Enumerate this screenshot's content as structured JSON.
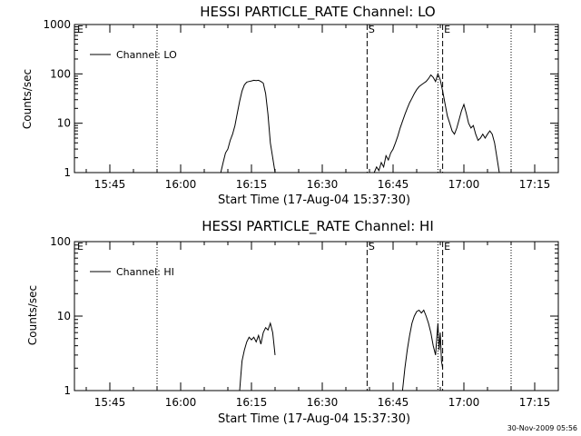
{
  "footer": {
    "timestamp": "30-Nov-2009 05:56"
  },
  "chart_data": [
    {
      "type": "line",
      "title": "HESSI PARTICLE_RATE Channel: LO",
      "xlabel": "Start Time (17-Aug-04 15:37:30)",
      "ylabel": "Counts/sec",
      "y_scale": "log",
      "xlim": [
        "15:37:30",
        "17:20:00"
      ],
      "ylim": [
        1,
        1000
      ],
      "x_ticks": [
        "15:45",
        "16:00",
        "16:15",
        "16:30",
        "16:45",
        "17:00",
        "17:15"
      ],
      "y_ticks": [
        {
          "value": 1,
          "label": "1"
        },
        {
          "value": 10,
          "label": "10"
        },
        {
          "value": 100,
          "label": "100"
        },
        {
          "value": 1000,
          "label": "1000"
        }
      ],
      "legend": {
        "position": "top-left",
        "entries": [
          "Channel: LO"
        ]
      },
      "markers": [
        {
          "time": "15:55:00",
          "style": "dotted",
          "label": ""
        },
        {
          "time": "16:39:30",
          "style": "dashed",
          "label": "S"
        },
        {
          "time": "16:54:30",
          "style": "dotted",
          "label": ""
        },
        {
          "time": "16:55:30",
          "style": "dashed",
          "label": "E"
        },
        {
          "time": "17:10:00",
          "style": "dotted",
          "label": ""
        }
      ],
      "edge_label": "E",
      "series": [
        {
          "name": "Channel: LO",
          "segments": [
            [
              [
                "16:08:30",
                1
              ],
              [
                "16:09:00",
                1.6
              ],
              [
                "16:09:30",
                2.5
              ],
              [
                "16:10:00",
                3
              ],
              [
                "16:10:30",
                4.5
              ],
              [
                "16:11:00",
                6
              ],
              [
                "16:11:30",
                9
              ],
              [
                "16:12:00",
                16
              ],
              [
                "16:12:30",
                28
              ],
              [
                "16:13:00",
                45
              ],
              [
                "16:13:30",
                60
              ],
              [
                "16:14:00",
                68
              ],
              [
                "16:14:30",
                70
              ],
              [
                "16:15:00",
                72
              ],
              [
                "16:15:30",
                74
              ],
              [
                "16:16:00",
                73
              ],
              [
                "16:16:30",
                74
              ],
              [
                "16:17:00",
                70
              ],
              [
                "16:17:30",
                65
              ],
              [
                "16:18:00",
                40
              ],
              [
                "16:18:30",
                15
              ],
              [
                "16:19:00",
                4
              ],
              [
                "16:19:30",
                2
              ],
              [
                "16:20:00",
                1
              ]
            ],
            [
              [
                "16:41:00",
                1
              ],
              [
                "16:41:30",
                1.3
              ],
              [
                "16:42:00",
                1.1
              ],
              [
                "16:42:30",
                1.6
              ],
              [
                "16:43:00",
                1.3
              ],
              [
                "16:43:30",
                2.2
              ],
              [
                "16:44:00",
                1.8
              ],
              [
                "16:44:30",
                2.5
              ],
              [
                "16:45:00",
                3
              ],
              [
                "16:45:30",
                4
              ],
              [
                "16:46:00",
                5.5
              ],
              [
                "16:46:30",
                8
              ],
              [
                "16:47:00",
                11
              ],
              [
                "16:47:30",
                15
              ],
              [
                "16:48:00",
                20
              ],
              [
                "16:48:30",
                26
              ],
              [
                "16:49:00",
                32
              ],
              [
                "16:49:30",
                40
              ],
              [
                "16:50:00",
                48
              ],
              [
                "16:50:30",
                55
              ],
              [
                "16:51:00",
                60
              ],
              [
                "16:51:30",
                65
              ],
              [
                "16:52:00",
                70
              ],
              [
                "16:52:30",
                80
              ],
              [
                "16:53:00",
                95
              ],
              [
                "16:53:30",
                85
              ],
              [
                "16:54:00",
                70
              ],
              [
                "16:54:30",
                100
              ],
              [
                "16:55:00",
                75
              ],
              [
                "16:55:30",
                45
              ],
              [
                "16:56:00",
                25
              ],
              [
                "16:56:30",
                14
              ],
              [
                "16:57:00",
                10
              ],
              [
                "16:57:30",
                7
              ],
              [
                "16:58:00",
                6
              ],
              [
                "16:58:30",
                8
              ],
              [
                "16:59:00",
                12
              ],
              [
                "16:59:30",
                18
              ],
              [
                "17:00:00",
                24
              ],
              [
                "17:00:30",
                16
              ],
              [
                "17:01:00",
                10
              ],
              [
                "17:01:30",
                8
              ],
              [
                "17:02:00",
                9
              ],
              [
                "17:02:30",
                6
              ],
              [
                "17:03:00",
                4.5
              ],
              [
                "17:03:30",
                5
              ],
              [
                "17:04:00",
                6
              ],
              [
                "17:04:30",
                5
              ],
              [
                "17:05:00",
                6
              ],
              [
                "17:05:30",
                7
              ],
              [
                "17:06:00",
                6
              ],
              [
                "17:06:30",
                4
              ],
              [
                "17:07:00",
                2
              ],
              [
                "17:07:30",
                1
              ]
            ]
          ]
        }
      ]
    },
    {
      "type": "line",
      "title": "HESSI PARTICLE_RATE Channel: HI",
      "xlabel": "Start Time (17-Aug-04 15:37:30)",
      "ylabel": "Counts/sec",
      "y_scale": "log",
      "xlim": [
        "15:37:30",
        "17:20:00"
      ],
      "ylim": [
        1,
        100
      ],
      "x_ticks": [
        "15:45",
        "16:00",
        "16:15",
        "16:30",
        "16:45",
        "17:00",
        "17:15"
      ],
      "y_ticks": [
        {
          "value": 1,
          "label": "1"
        },
        {
          "value": 10,
          "label": "10"
        },
        {
          "value": 100,
          "label": "100"
        }
      ],
      "legend": {
        "position": "top-left",
        "entries": [
          "Channel: HI"
        ]
      },
      "markers": [
        {
          "time": "15:55:00",
          "style": "dotted",
          "label": ""
        },
        {
          "time": "16:39:30",
          "style": "dashed",
          "label": "S"
        },
        {
          "time": "16:54:30",
          "style": "dotted",
          "label": ""
        },
        {
          "time": "16:55:30",
          "style": "dashed",
          "label": "E"
        },
        {
          "time": "17:10:00",
          "style": "dotted",
          "label": ""
        }
      ],
      "edge_label": "E",
      "series": [
        {
          "name": "Channel: HI",
          "segments": [
            [
              [
                "16:12:30",
                1
              ],
              [
                "16:12:45",
                1.6
              ],
              [
                "16:13:00",
                2.5
              ],
              [
                "16:13:30",
                3.5
              ],
              [
                "16:14:00",
                4.5
              ],
              [
                "16:14:30",
                5.2
              ],
              [
                "16:15:00",
                4.8
              ],
              [
                "16:15:30",
                5.2
              ],
              [
                "16:16:00",
                4.5
              ],
              [
                "16:16:30",
                5.5
              ],
              [
                "16:17:00",
                4.2
              ],
              [
                "16:17:30",
                6
              ],
              [
                "16:18:00",
                7
              ],
              [
                "16:18:30",
                6.5
              ],
              [
                "16:19:00",
                8
              ],
              [
                "16:19:30",
                6
              ],
              [
                "16:20:00",
                3
              ]
            ],
            [
              [
                "16:47:00",
                1
              ],
              [
                "16:47:30",
                2
              ],
              [
                "16:48:00",
                3.5
              ],
              [
                "16:48:30",
                5.5
              ],
              [
                "16:49:00",
                8
              ],
              [
                "16:49:30",
                10
              ],
              [
                "16:50:00",
                11.5
              ],
              [
                "16:50:30",
                12
              ],
              [
                "16:51:00",
                11
              ],
              [
                "16:51:30",
                12
              ],
              [
                "16:52:00",
                10
              ],
              [
                "16:52:30",
                8
              ],
              [
                "16:53:00",
                6
              ],
              [
                "16:53:30",
                4
              ],
              [
                "16:54:00",
                3
              ],
              [
                "16:54:15",
                5
              ],
              [
                "16:54:30",
                8
              ],
              [
                "16:54:45",
                3.5
              ],
              [
                "16:55:00",
                6
              ],
              [
                "16:55:15",
                2.5
              ],
              [
                "16:55:30",
                2
              ]
            ]
          ]
        }
      ]
    }
  ]
}
